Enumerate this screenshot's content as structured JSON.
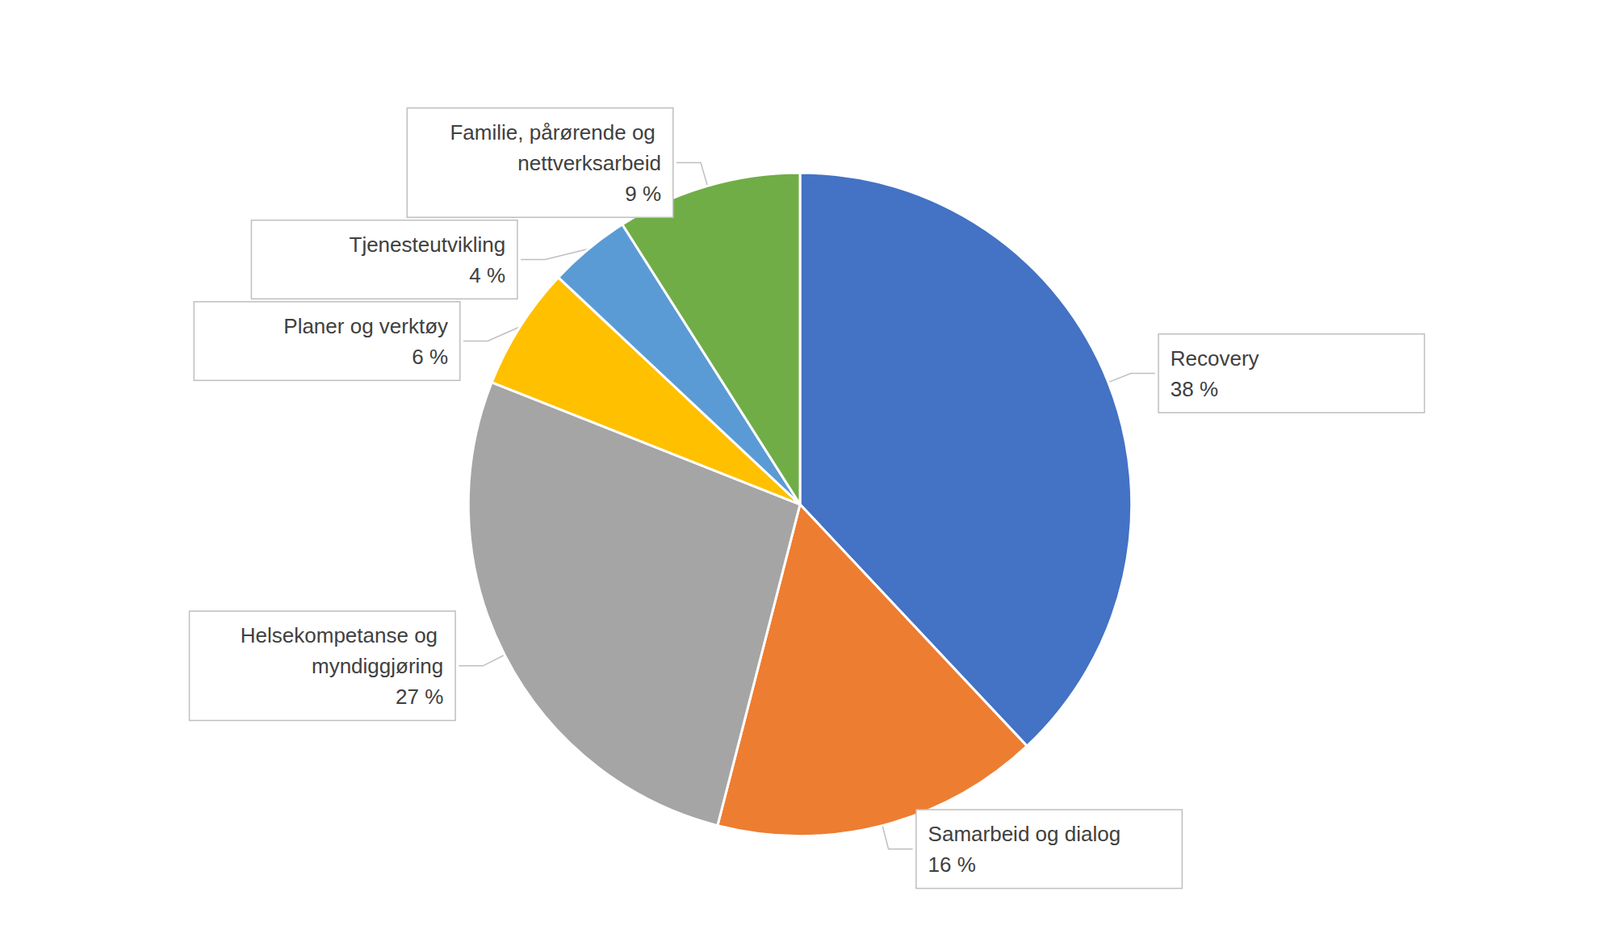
{
  "chart_data": {
    "type": "pie",
    "categories": [
      "Recovery",
      "Samarbeid og dialog",
      "Helsekompetanse og myndiggjøring",
      "Planer og verktøy",
      "Tjenesteutvikling",
      "Familie, pårørende og nettverksarbeid"
    ],
    "values": [
      38,
      16,
      27,
      6,
      4,
      9
    ],
    "value_labels": [
      "38 %",
      "16 %",
      "27 %",
      "6 %",
      "4 %",
      "9 %"
    ],
    "colors": [
      "#4472c4",
      "#ed7d31",
      "#a5a5a5",
      "#ffc000",
      "#5b9bd5",
      "#70ad47"
    ],
    "data_labels": true
  }
}
